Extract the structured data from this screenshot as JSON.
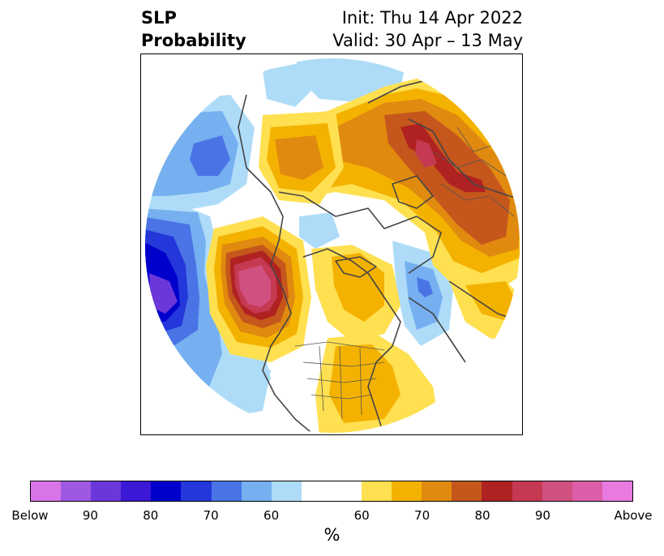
{
  "title": {
    "left_line1": "SLP",
    "left_line2": "Probability",
    "right_line1": "Init: Thu 14 Apr 2022",
    "right_line2": "Valid: 30 Apr – 13 May"
  },
  "map": {
    "projection": "north-polar stereographic",
    "boundaries": [
      "coastlines",
      "country borders",
      "state/province borders"
    ],
    "anomalies": [
      {
        "region": "Gulf of Alaska / western Canada",
        "category": "above",
        "peak_percent": 90
      },
      {
        "region": "northern Russia / Siberia",
        "category": "above",
        "peak_percent": 80
      },
      {
        "region": "Europe / Scandinavia",
        "category": "above",
        "peak_percent": 70
      },
      {
        "region": "Greenland",
        "category": "above",
        "peak_percent": 65
      },
      {
        "region": "eastern United States",
        "category": "above",
        "peak_percent": 60
      },
      {
        "region": "central North Pacific",
        "category": "below",
        "peak_percent": 90
      },
      {
        "region": "western North Pacific / East Asia",
        "category": "below",
        "peak_percent": 75
      },
      {
        "region": "North Atlantic",
        "category": "below",
        "peak_percent": 70
      }
    ]
  },
  "colorbar": {
    "colors": [
      "#d974e8",
      "#9e58e3",
      "#6b37d9",
      "#3b17d6",
      "#0000cc",
      "#2437da",
      "#4a74e6",
      "#76b0f0",
      "#aedcf8",
      "#ffffff",
      "#ffe050",
      "#f4b200",
      "#e08a0f",
      "#c5561c",
      "#b02222",
      "#c53a52",
      "#d05080",
      "#dc5ea8",
      "#e97ae0"
    ],
    "tick_labels": [
      "Below",
      "90",
      "80",
      "70",
      "60",
      "60",
      "70",
      "80",
      "90",
      "Above"
    ],
    "label": "%"
  }
}
